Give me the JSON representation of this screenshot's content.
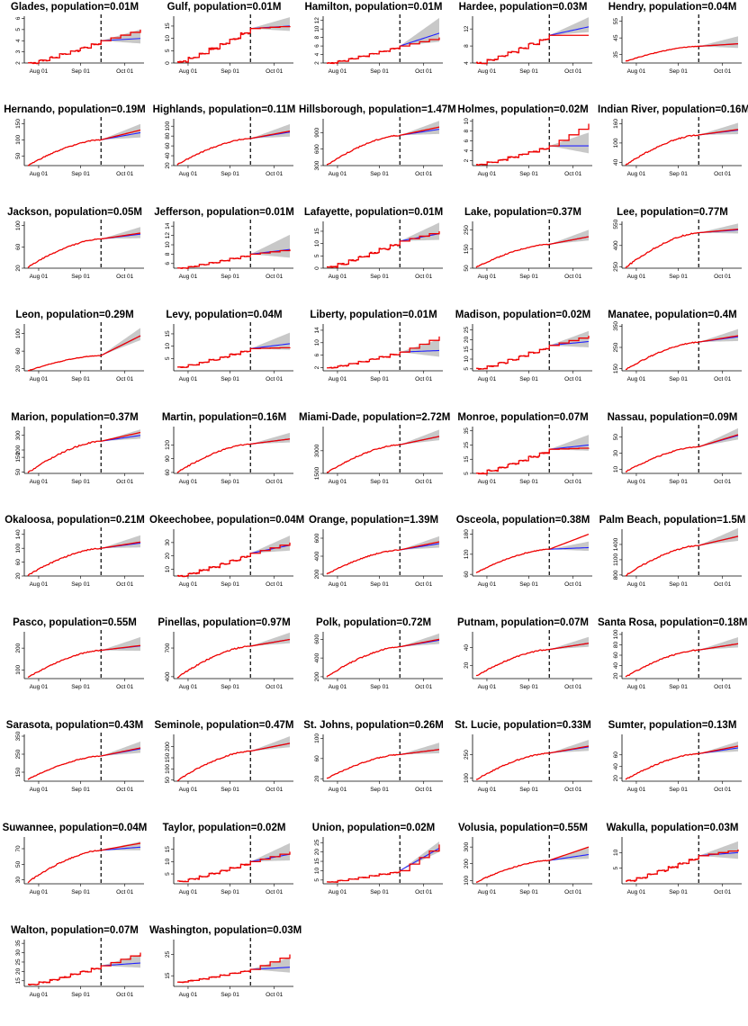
{
  "chart_data": {
    "type": "line",
    "layout": "small-multiples",
    "x_ticks": [
      "Aug 01",
      "Sep 01",
      "Oct 01"
    ],
    "colors": {
      "observed": "#ee0000",
      "predicted": "#2222ff",
      "interval": "#c8c8c8",
      "cutoff": "#000000"
    },
    "panels": [
      {
        "title": "Glades, population=0.01M",
        "yticks": [
          "2",
          "3",
          "4",
          "5",
          "6"
        ],
        "ylim": [
          2,
          6.2
        ],
        "start": 2,
        "end": 4,
        "pred_end": 4.2,
        "band": 0.9,
        "style": "step",
        "late": 5
      },
      {
        "title": "Gulf, population=0.01M",
        "yticks": [
          "0",
          "5",
          "10",
          "15"
        ],
        "ylim": [
          0,
          19
        ],
        "start": 0.5,
        "end": 14,
        "pred_end": 15,
        "band": 4,
        "style": "step",
        "late": 15
      },
      {
        "title": "Hamilton, population=0.01M",
        "yticks": [
          "2",
          "4",
          "6",
          "8",
          "10",
          "12"
        ],
        "ylim": [
          2,
          13
        ],
        "start": 2,
        "end": 6,
        "pred_end": 9,
        "band": 4,
        "style": "step",
        "late": 8
      },
      {
        "title": "Hardee, population=0.03M",
        "yticks": [
          "4",
          "8",
          "12"
        ],
        "ylim": [
          4,
          15
        ],
        "start": 4,
        "end": 10.5,
        "pred_end": 12.5,
        "band": 2.5,
        "style": "step",
        "late": 10.5
      },
      {
        "title": "Hendry, population=0.04M",
        "yticks": [
          "35",
          "45",
          "55"
        ],
        "ylim": [
          30,
          58
        ],
        "start": 31,
        "end": 40,
        "pred_end": 41.5,
        "band": 5,
        "style": "smooth",
        "late": 41.5
      },
      {
        "title": "Hernando, population=0.19M",
        "yticks": [
          "50",
          "100",
          "150"
        ],
        "ylim": [
          20,
          165
        ],
        "start": 20,
        "end": 100,
        "pred_end": 122,
        "band": 30,
        "style": "smooth",
        "late": 130
      },
      {
        "title": "Highlands, population=0.11M",
        "yticks": [
          "20",
          "40",
          "60",
          "80",
          "100"
        ],
        "ylim": [
          20,
          115
        ],
        "start": 22,
        "end": 75,
        "pred_end": 88,
        "band": 18,
        "style": "smooth",
        "late": 90
      },
      {
        "title": "Hillsborough, population=1.47M",
        "yticks": [
          "300",
          "600",
          "900"
        ],
        "ylim": [
          300,
          1150
        ],
        "start": 310,
        "end": 850,
        "pred_end": 960,
        "band": 170,
        "style": "smooth",
        "late": 1000
      },
      {
        "title": "Holmes, population=0.02M",
        "yticks": [
          "2",
          "4",
          "6",
          "8",
          "10"
        ],
        "ylim": [
          1,
          10.5
        ],
        "start": 1.2,
        "end": 5,
        "pred_end": 5,
        "band": 3,
        "style": "step",
        "late": 9.5
      },
      {
        "title": "Indian River, population=0.16M",
        "yticks": [
          "40",
          "100",
          "160"
        ],
        "ylim": [
          30,
          175
        ],
        "start": 32,
        "end": 125,
        "pred_end": 140,
        "band": 25,
        "style": "smooth",
        "late": 142
      },
      {
        "title": "Jackson, population=0.05M",
        "yticks": [
          "20",
          "60",
          "100"
        ],
        "ylim": [
          20,
          108
        ],
        "start": 22,
        "end": 75,
        "pred_end": 84,
        "band": 15,
        "style": "smooth",
        "late": 86
      },
      {
        "title": "Jefferson, population=0.01M",
        "yticks": [
          "6",
          "8",
          "10",
          "12",
          "14"
        ],
        "ylim": [
          5,
          15
        ],
        "start": 5,
        "end": 8,
        "pred_end": 9,
        "band": 3.5,
        "style": "step",
        "late": 9
      },
      {
        "title": "Lafayette, population=0.01M",
        "yticks": [
          "0",
          "5",
          "10",
          "15"
        ],
        "ylim": [
          0,
          19
        ],
        "start": 0.5,
        "end": 11,
        "pred_end": 14,
        "band": 5,
        "style": "step",
        "late": 15
      },
      {
        "title": "Lake, population=0.37M",
        "yticks": [
          "50",
          "150",
          "250"
        ],
        "ylim": [
          50,
          295
        ],
        "start": 55,
        "end": 175,
        "pred_end": 215,
        "band": 40,
        "style": "smooth",
        "late": 215
      },
      {
        "title": "Lee, population=0.77M",
        "yticks": [
          "250",
          "400",
          "550"
        ],
        "ylim": [
          240,
          570
        ],
        "start": 245,
        "end": 490,
        "pred_end": 510,
        "band": 50,
        "style": "smooth",
        "late": 515
      },
      {
        "title": "Leon, population=0.29M",
        "yticks": [
          "20",
          "60",
          "100"
        ],
        "ylim": [
          15,
          122
        ],
        "start": 15,
        "end": 50,
        "pred_end": 95,
        "band": 20,
        "style": "smooth",
        "late": 95
      },
      {
        "title": "Levy, population=0.04M",
        "yticks": [
          "5",
          "10",
          "15"
        ],
        "ylim": [
          0,
          19
        ],
        "start": 1.5,
        "end": 9,
        "pred_end": 11,
        "band": 5,
        "style": "step",
        "late": 9.5
      },
      {
        "title": "Liberty, population=0.01M",
        "yticks": [
          "2",
          "6",
          "10",
          "14"
        ],
        "ylim": [
          1,
          16
        ],
        "start": 2,
        "end": 7,
        "pred_end": 7.5,
        "band": 4,
        "style": "step",
        "late": 12
      },
      {
        "title": "Madison, population=0.02M",
        "yticks": [
          "5",
          "10",
          "15",
          "20",
          "25"
        ],
        "ylim": [
          4,
          28
        ],
        "start": 5,
        "end": 17,
        "pred_end": 19,
        "band": 6,
        "style": "step",
        "late": 22
      },
      {
        "title": "Manatee, population=0.4M",
        "yticks": [
          "150",
          "250",
          "350"
        ],
        "ylim": [
          140,
          360
        ],
        "start": 145,
        "end": 275,
        "pred_end": 300,
        "band": 40,
        "style": "smooth",
        "late": 305
      },
      {
        "title": "Marion, population=0.37M",
        "yticks": [
          "50",
          "150",
          "200",
          "300"
        ],
        "ylim": [
          40,
          360
        ],
        "start": 45,
        "end": 260,
        "pred_end": 300,
        "band": 45,
        "style": "smooth",
        "late": 320
      },
      {
        "title": "Martin, population=0.16M",
        "yticks": [
          "60",
          "90",
          "120"
        ],
        "ylim": [
          58,
          160
        ],
        "start": 60,
        "end": 122,
        "pred_end": 133,
        "band": 15,
        "style": "smooth",
        "late": 133
      },
      {
        "title": "Miami-Dade, population=2.72M",
        "yticks": [
          "1500",
          "3000"
        ],
        "ylim": [
          1500,
          4600
        ],
        "start": 1550,
        "end": 3400,
        "pred_end": 3950,
        "band": 500,
        "style": "smooth",
        "late": 3950
      },
      {
        "title": "Monroe, population=0.07M",
        "yticks": [
          "5",
          "15",
          "25",
          "35"
        ],
        "ylim": [
          5,
          38
        ],
        "start": 5,
        "end": 22,
        "pred_end": 25,
        "band": 8,
        "style": "step",
        "late": 23
      },
      {
        "title": "Nassau, population=0.09M",
        "yticks": [
          "10",
          "30",
          "50"
        ],
        "ylim": [
          5,
          63
        ],
        "start": 7,
        "end": 38,
        "pred_end": 52,
        "band": 10,
        "style": "smooth",
        "late": 53
      },
      {
        "title": "Okaloosa, population=0.21M",
        "yticks": [
          "20",
          "60",
          "100",
          "140"
        ],
        "ylim": [
          20,
          155
        ],
        "start": 22,
        "end": 100,
        "pred_end": 115,
        "band": 25,
        "style": "smooth",
        "late": 118
      },
      {
        "title": "Okeechobee, population=0.04M",
        "yticks": [
          "10",
          "20",
          "30"
        ],
        "ylim": [
          5,
          40
        ],
        "start": 5,
        "end": 22,
        "pred_end": 28,
        "band": 8,
        "style": "step",
        "late": 30
      },
      {
        "title": "Orange, population=1.39M",
        "yticks": [
          "200",
          "400",
          "600"
        ],
        "ylim": [
          180,
          700
        ],
        "start": 200,
        "end": 470,
        "pred_end": 540,
        "band": 90,
        "style": "smooth",
        "late": 560
      },
      {
        "title": "Osceola, population=0.38M",
        "yticks": [
          "60",
          "120",
          "180"
        ],
        "ylim": [
          55,
          195
        ],
        "start": 65,
        "end": 135,
        "pred_end": 140,
        "band": 20,
        "style": "smooth",
        "late": 180
      },
      {
        "title": "Palm Beach, population=1.5M",
        "yticks": [
          "800",
          "1100",
          "1400"
        ],
        "ylim": [
          780,
          1700
        ],
        "start": 790,
        "end": 1380,
        "pred_end": 1560,
        "band": 180,
        "style": "smooth",
        "late": 1560
      },
      {
        "title": "Pasco, population=0.55M",
        "yticks": [
          "100",
          "200"
        ],
        "ylim": [
          60,
          275
        ],
        "start": 65,
        "end": 190,
        "pred_end": 210,
        "band": 45,
        "style": "smooth",
        "late": 212
      },
      {
        "title": "Pinellas, population=0.97M",
        "yticks": [
          "400",
          "700"
        ],
        "ylim": [
          380,
          870
        ],
        "start": 390,
        "end": 720,
        "pred_end": 790,
        "band": 80,
        "style": "smooth",
        "late": 790
      },
      {
        "title": "Polk, population=0.72M",
        "yticks": [
          "200",
          "400",
          "600"
        ],
        "ylim": [
          180,
          680
        ],
        "start": 200,
        "end": 520,
        "pred_end": 590,
        "band": 80,
        "style": "smooth",
        "late": 600
      },
      {
        "title": "Putnam, population=0.07M",
        "yticks": [
          "20",
          "40"
        ],
        "ylim": [
          5,
          58
        ],
        "start": 8,
        "end": 38,
        "pred_end": 45,
        "band": 8,
        "style": "smooth",
        "late": 45
      },
      {
        "title": "Santa Rosa, population=0.18M",
        "yticks": [
          "20",
          "40",
          "60",
          "80",
          "100"
        ],
        "ylim": [
          15,
          105
        ],
        "start": 18,
        "end": 70,
        "pred_end": 82,
        "band": 14,
        "style": "smooth",
        "late": 82
      },
      {
        "title": "Sarasota, population=0.43M",
        "yticks": [
          "150",
          "250",
          "350"
        ],
        "ylim": [
          100,
          360
        ],
        "start": 110,
        "end": 240,
        "pred_end": 280,
        "band": 45,
        "style": "smooth",
        "late": 285
      },
      {
        "title": "Seminole, population=0.47M",
        "yticks": [
          "50",
          "100",
          "150",
          "200"
        ],
        "ylim": [
          45,
          255
        ],
        "start": 48,
        "end": 180,
        "pred_end": 215,
        "band": 35,
        "style": "smooth",
        "late": 215
      },
      {
        "title": "St. Johns, population=0.26M",
        "yticks": [
          "20",
          "60",
          "100"
        ],
        "ylim": [
          15,
          108
        ],
        "start": 20,
        "end": 68,
        "pred_end": 78,
        "band": 15,
        "style": "smooth",
        "late": 78
      },
      {
        "title": "St. Lucie, population=0.33M",
        "yticks": [
          "100",
          "250"
        ],
        "ylim": [
          80,
          380
        ],
        "start": 90,
        "end": 260,
        "pred_end": 300,
        "band": 50,
        "style": "smooth",
        "late": 305
      },
      {
        "title": "Sumter, population=0.13M",
        "yticks": [
          "20",
          "40",
          "60"
        ],
        "ylim": [
          15,
          95
        ],
        "start": 18,
        "end": 62,
        "pred_end": 72,
        "band": 12,
        "style": "smooth",
        "late": 75
      },
      {
        "title": "Suwannee, population=0.04M",
        "yticks": [
          "30",
          "50",
          "70"
        ],
        "ylim": [
          25,
          85
        ],
        "start": 27,
        "end": 68,
        "pred_end": 72,
        "band": 8,
        "style": "smooth",
        "late": 77
      },
      {
        "title": "Taylor, population=0.02M",
        "yticks": [
          "5",
          "10",
          "15"
        ],
        "ylim": [
          1,
          20
        ],
        "start": 2,
        "end": 10,
        "pred_end": 13,
        "band": 5,
        "style": "step",
        "late": 14
      },
      {
        "title": "Union, population=0.02M",
        "yticks": [
          "5",
          "10",
          "15",
          "20",
          "25"
        ],
        "ylim": [
          3,
          28
        ],
        "start": 4,
        "end": 10,
        "pred_end": 22,
        "band": 4,
        "style": "step",
        "late": 24
      },
      {
        "title": "Volusia, population=0.55M",
        "yticks": [
          "100",
          "200",
          "300"
        ],
        "ylim": [
          80,
          360
        ],
        "start": 90,
        "end": 220,
        "pred_end": 255,
        "band": 50,
        "style": "smooth",
        "late": 300
      },
      {
        "title": "Wakulla, population=0.03M",
        "yticks": [
          "5",
          "10"
        ],
        "ylim": [
          0,
          15
        ],
        "start": 1,
        "end": 9,
        "pred_end": 10,
        "band": 4,
        "style": "step",
        "late": 11
      },
      {
        "title": "Walton, population=0.07M",
        "yticks": [
          "15",
          "20",
          "25",
          "30",
          "35"
        ],
        "ylim": [
          12,
          37
        ],
        "start": 13,
        "end": 23,
        "pred_end": 24.5,
        "band": 5,
        "style": "step",
        "late": 30
      },
      {
        "title": "Washington, population=0.03M",
        "yticks": [
          "15",
          "25"
        ],
        "ylim": [
          10,
          32
        ],
        "start": 12,
        "end": 18,
        "pred_end": 19,
        "band": 5,
        "style": "step",
        "late": 25
      }
    ]
  }
}
